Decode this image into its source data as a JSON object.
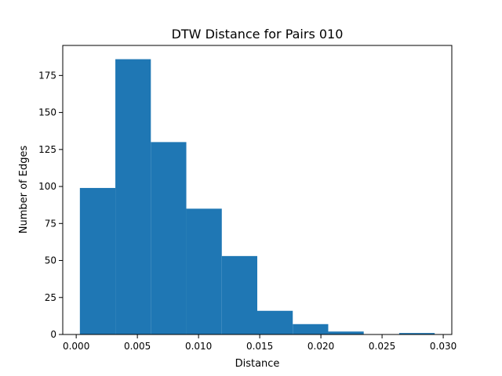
{
  "chart_data": {
    "type": "bar",
    "title": "DTW Distance for Pairs 010",
    "xlabel": "Distance",
    "ylabel": "Number of Edges",
    "bins": [
      {
        "x0": 0.0003,
        "x1": 0.0032,
        "count": 99
      },
      {
        "x0": 0.0032,
        "x1": 0.0061,
        "count": 186
      },
      {
        "x0": 0.0061,
        "x1": 0.009,
        "count": 130
      },
      {
        "x0": 0.009,
        "x1": 0.0119,
        "count": 85
      },
      {
        "x0": 0.0119,
        "x1": 0.0148,
        "count": 53
      },
      {
        "x0": 0.0148,
        "x1": 0.0177,
        "count": 16
      },
      {
        "x0": 0.0177,
        "x1": 0.0206,
        "count": 7
      },
      {
        "x0": 0.0206,
        "x1": 0.0235,
        "count": 2
      },
      {
        "x0": 0.0235,
        "x1": 0.0264,
        "count": 0
      },
      {
        "x0": 0.0264,
        "x1": 0.0293,
        "count": 1
      }
    ],
    "xlim": [
      -0.0011,
      0.0307
    ],
    "ylim": [
      0,
      195.3
    ],
    "xticks": [
      {
        "value": 0.0,
        "label": "0.000"
      },
      {
        "value": 0.005,
        "label": "0.005"
      },
      {
        "value": 0.01,
        "label": "0.010"
      },
      {
        "value": 0.015,
        "label": "0.015"
      },
      {
        "value": 0.02,
        "label": "0.020"
      },
      {
        "value": 0.025,
        "label": "0.025"
      },
      {
        "value": 0.03,
        "label": "0.030"
      }
    ],
    "yticks": [
      {
        "value": 0,
        "label": "0"
      },
      {
        "value": 25,
        "label": "25"
      },
      {
        "value": 50,
        "label": "50"
      },
      {
        "value": 75,
        "label": "75"
      },
      {
        "value": 100,
        "label": "100"
      },
      {
        "value": 125,
        "label": "125"
      },
      {
        "value": 150,
        "label": "150"
      },
      {
        "value": 175,
        "label": "175"
      }
    ],
    "bar_color": "#1f77b4",
    "grid": false,
    "legend": "none"
  }
}
